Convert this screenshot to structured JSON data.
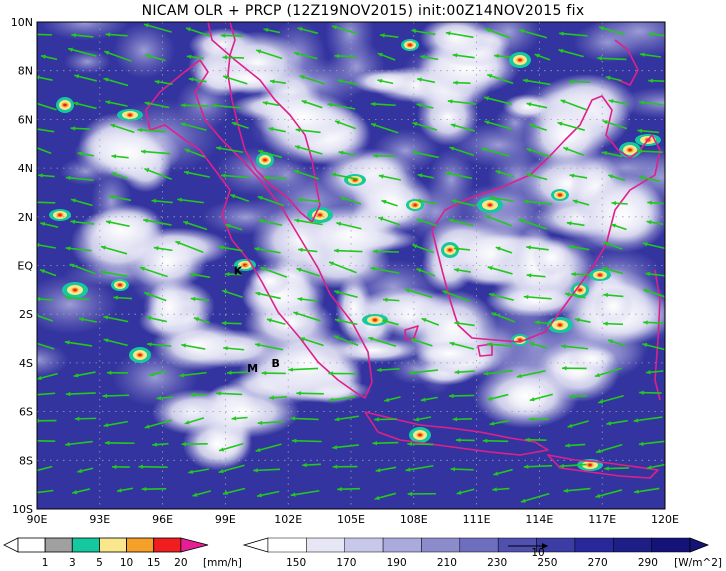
{
  "title": "NICAM OLR + PRCP (12Z19NOV2015) init:00Z14NOV2015 fix",
  "map": {
    "lon_labels": [
      "90E",
      "93E",
      "96E",
      "99E",
      "102E",
      "105E",
      "108E",
      "111E",
      "114E",
      "117E",
      "120E"
    ],
    "lat_labels": [
      "10N",
      "8N",
      "6N",
      "4N",
      "2N",
      "EQ",
      "2S",
      "4S",
      "6S",
      "8S",
      "10S"
    ],
    "lon_range": [
      90,
      120
    ],
    "lat_range": [
      -10,
      10
    ],
    "coastline_color": "#e0208a",
    "wind_vector_color": "#22c81e",
    "station_markers": [
      {
        "label": "K",
        "lon": 99.6,
        "lat": -0.2
      },
      {
        "label": "M",
        "lon": 100.3,
        "lat": -4.2
      },
      {
        "label": "B",
        "lon": 101.4,
        "lat": -4.0
      }
    ]
  },
  "prcp_colorbar": {
    "ticks": [
      "1",
      "3",
      "5",
      "10",
      "15",
      "20"
    ],
    "unit": "[mm/h]",
    "colors": [
      "#ffffff",
      "#a0a0a0",
      "#14c8a0",
      "#fae68c",
      "#f5a028",
      "#f01e1e",
      "#e61e96"
    ]
  },
  "olr_colorbar": {
    "ticks": [
      "150",
      "170",
      "190",
      "210",
      "230",
      "250",
      "270",
      "290"
    ],
    "unit": "[W/m^2]",
    "vector_ref": "10",
    "colors": [
      "#ffffff",
      "#e6e6f5",
      "#c8c8eb",
      "#aaaadc",
      "#8c8ccd",
      "#6e6ebe",
      "#5050af",
      "#3c3ca5",
      "#28289b",
      "#1e1e87",
      "#141478"
    ]
  }
}
